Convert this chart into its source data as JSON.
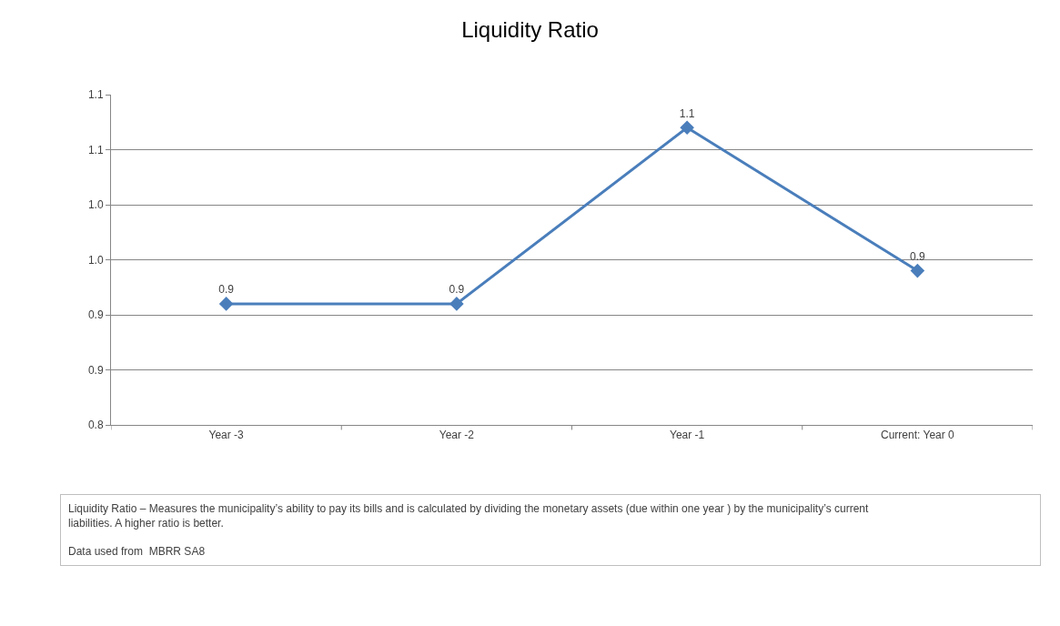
{
  "chart_data": {
    "type": "line",
    "title": "Liquidity Ratio",
    "categories": [
      "Year -3",
      "Year -2",
      "Year -1",
      "Current: Year 0"
    ],
    "series": [
      {
        "color": "#4a7ebb",
        "values": [
          0.91,
          0.91,
          1.07,
          0.94
        ],
        "value_labels": [
          "0.9",
          "0.9",
          "1.1",
          "0.9"
        ]
      }
    ],
    "ylim": [
      0.8,
      1.1
    ],
    "yticks": [
      {
        "value": 0.8,
        "label": "0.8"
      },
      {
        "value": 0.85,
        "label": "0.9"
      },
      {
        "value": 0.9,
        "label": "0.9"
      },
      {
        "value": 0.95,
        "label": "1.0"
      },
      {
        "value": 1.0,
        "label": "1.0"
      },
      {
        "value": 1.05,
        "label": "1.1"
      },
      {
        "value": 1.1,
        "label": "1.1"
      }
    ],
    "grid": "y",
    "marker": "diamond",
    "line_style": "solid",
    "annotations": [
      "Liquidity Ratio – Measures the municipality’s ability to pay its bills and is calculated by dividing the monetary assets (due within one year ) by the municipality’s current liabilities. A higher ratio is better.",
      "Data used from  MBRR SA8"
    ]
  }
}
